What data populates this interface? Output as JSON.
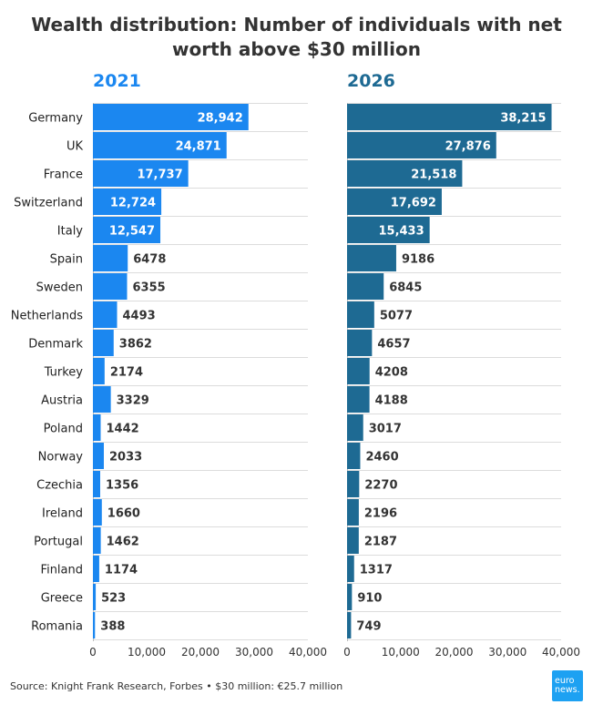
{
  "title_line1": "Wealth distribution: Number of individuals with net",
  "title_line2": "worth above $30 million",
  "source": "Source: Knight Frank Research, Forbes • $30 million: €25.7 million",
  "logo": {
    "line1": "euro",
    "line2": "news."
  },
  "colors": {
    "bar_2021": "#1b87f0",
    "bar_2026": "#1e6a93",
    "grid": "#dcdcdc"
  },
  "chart_data": [
    {
      "type": "bar",
      "orientation": "horizontal",
      "title": "2021",
      "categories": [
        "Germany",
        "UK",
        "France",
        "Switzerland",
        "Italy",
        "Spain",
        "Sweden",
        "Netherlands",
        "Denmark",
        "Turkey",
        "Austria",
        "Poland",
        "Norway",
        "Czechia",
        "Ireland",
        "Portugal",
        "Finland",
        "Greece",
        "Romania"
      ],
      "values": [
        28942,
        24871,
        17737,
        12724,
        12547,
        6478,
        6355,
        4493,
        3862,
        2174,
        3329,
        1442,
        2033,
        1356,
        1660,
        1462,
        1174,
        523,
        388
      ],
      "value_labels": [
        "28,942",
        "24,871",
        "17,737",
        "12,724",
        "12,547",
        "6478",
        "6355",
        "4493",
        "3862",
        "2174",
        "3329",
        "1442",
        "2033",
        "1356",
        "1660",
        "1462",
        "1174",
        "523",
        "388"
      ],
      "xlim": [
        0,
        40000
      ],
      "xticks": [
        0,
        10000,
        20000,
        30000,
        40000
      ],
      "xtick_labels": [
        "0",
        "10,000",
        "20,000",
        "30,000",
        "40,000"
      ],
      "grid": true
    },
    {
      "type": "bar",
      "orientation": "horizontal",
      "title": "2026",
      "categories": [
        "Germany",
        "UK",
        "France",
        "Switzerland",
        "Italy",
        "Spain",
        "Sweden",
        "Netherlands",
        "Denmark",
        "Turkey",
        "Austria",
        "Poland",
        "Norway",
        "Czechia",
        "Ireland",
        "Portugal",
        "Finland",
        "Greece",
        "Romania"
      ],
      "values": [
        38215,
        27876,
        21518,
        17692,
        15433,
        9186,
        6845,
        5077,
        4657,
        4208,
        4188,
        3017,
        2460,
        2270,
        2196,
        2187,
        1317,
        910,
        749
      ],
      "value_labels": [
        "38,215",
        "27,876",
        "21,518",
        "17,692",
        "15,433",
        "9186",
        "6845",
        "5077",
        "4657",
        "4208",
        "4188",
        "3017",
        "2460",
        "2270",
        "2196",
        "2187",
        "1317",
        "910",
        "749"
      ],
      "xlim": [
        0,
        40000
      ],
      "xticks": [
        0,
        10000,
        20000,
        30000,
        40000
      ],
      "xtick_labels": [
        "0",
        "10,000",
        "20,000",
        "30,000",
        "40,000"
      ],
      "grid": true
    }
  ]
}
